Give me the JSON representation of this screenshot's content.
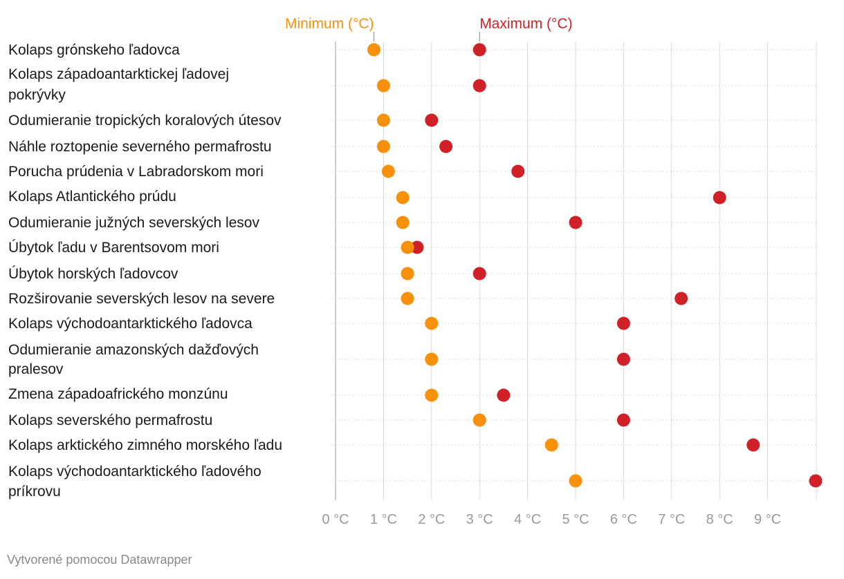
{
  "chart_data": {
    "type": "range-dot",
    "unit": " °C",
    "xlim": [
      0,
      10
    ],
    "ticks": [
      0,
      1,
      2,
      3,
      4,
      5,
      6,
      7,
      8,
      9
    ],
    "tick_labels": [
      "0 °C",
      "1 °C",
      "2 °C",
      "3 °C",
      "4 °C",
      "5 °C",
      "6 °C",
      "7 °C",
      "8 °C",
      "9 °C"
    ],
    "legend": {
      "min_label": "Minimum (°C)",
      "max_label": "Maximum (°C)"
    },
    "colors": {
      "min": "#f7900a",
      "max": "#cf2127",
      "bar_start": "#fbb776",
      "bar_end": "#e48b8b",
      "grid": "#d9d9d9",
      "axis": "#bdbdbd"
    },
    "rows": [
      {
        "label": [
          "Kolaps grónskeho ľadovca"
        ],
        "min": 0.8,
        "max": 3.0
      },
      {
        "label": [
          "Kolaps západoantarktickej ľadovej",
          "pokrývky"
        ],
        "min": 1.0,
        "max": 3.0
      },
      {
        "label": [
          "Odumieranie tropických koralových útesov"
        ],
        "min": 1.0,
        "max": 2.0
      },
      {
        "label": [
          "Náhle roztopenie severného permafrostu"
        ],
        "min": 1.0,
        "max": 2.3
      },
      {
        "label": [
          "Porucha prúdenia v Labradorskom mori"
        ],
        "min": 1.1,
        "max": 3.8
      },
      {
        "label": [
          "Kolaps Atlantického prúdu"
        ],
        "min": 1.4,
        "max": 8.0
      },
      {
        "label": [
          "Odumieranie južných severských lesov"
        ],
        "min": 1.4,
        "max": 5.0
      },
      {
        "label": [
          "Úbytok ľadu v Barentsovom mori"
        ],
        "min": 1.5,
        "max": 1.7
      },
      {
        "label": [
          "Úbytok horských ľadovcov"
        ],
        "min": 1.5,
        "max": 3.0
      },
      {
        "label": [
          "Rozširovanie severských lesov na severe"
        ],
        "min": 1.5,
        "max": 7.2
      },
      {
        "label": [
          "Kolaps východoantarktického ľadovca"
        ],
        "min": 2.0,
        "max": 6.0
      },
      {
        "label": [
          "Odumieranie amazonských dažďových",
          "pralesov"
        ],
        "min": 2.0,
        "max": 6.0
      },
      {
        "label": [
          "Zmena západoafrického monzúnu"
        ],
        "min": 2.0,
        "max": 3.5
      },
      {
        "label": [
          "Kolaps severského permafrostu"
        ],
        "min": 3.0,
        "max": 6.0
      },
      {
        "label": [
          "Kolaps arktického zimného morského ľadu"
        ],
        "min": 4.5,
        "max": 8.7
      },
      {
        "label": [
          "Kolaps východoantarktického ľadového",
          "príkrovu"
        ],
        "min": 5.0,
        "max": 10.0
      }
    ]
  },
  "footer": "Vytvorené pomocou Datawrapper"
}
